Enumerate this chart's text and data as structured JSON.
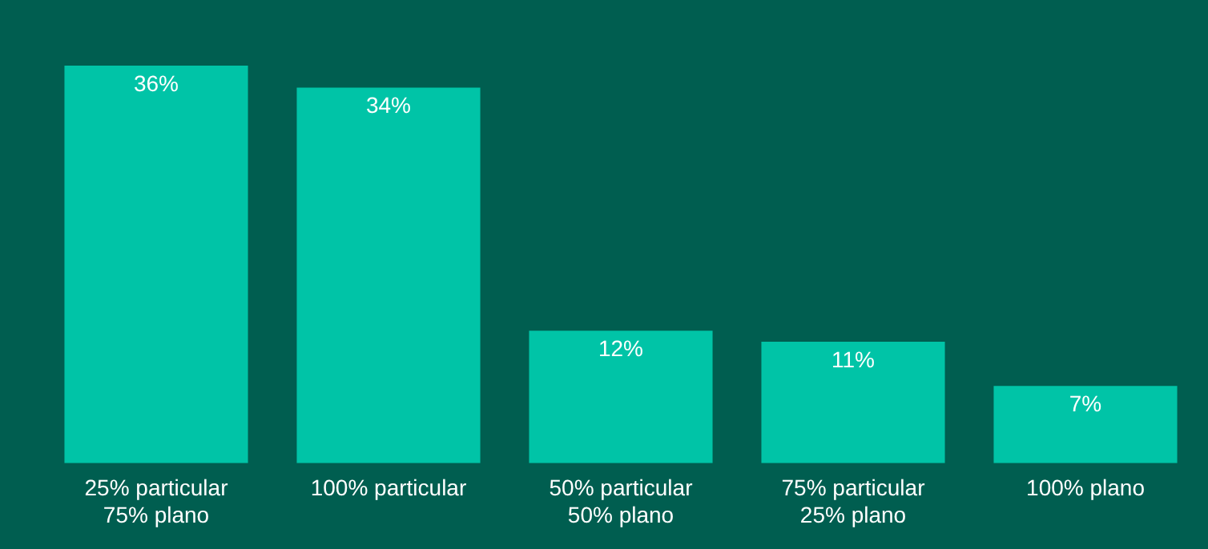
{
  "chart_data": {
    "type": "bar",
    "categories": [
      "25% particular\n75% plano",
      "100% particular",
      "50% particular\n50% plano",
      "75% particular\n25% plano",
      "100% plano"
    ],
    "values": [
      36,
      34,
      12,
      11,
      7
    ],
    "value_labels": [
      "36%",
      "34%",
      "12%",
      "11%",
      "7%"
    ],
    "color": "#00c4a7",
    "grid": false,
    "legend": false
  }
}
